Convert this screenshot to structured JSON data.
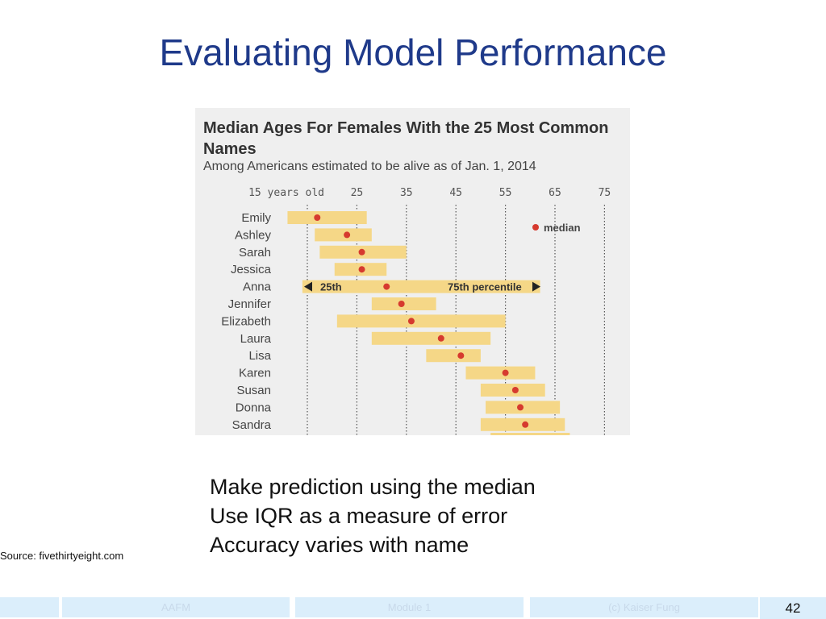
{
  "slide": {
    "title": "Evaluating Model Performance",
    "bullets": [
      "Make prediction using the median",
      "Use IQR as a measure of error",
      "Accuracy varies with name"
    ],
    "source": "Source: fivethirtyeight.com",
    "footer": {
      "left": "AAFM",
      "center": "Module 1",
      "right": "(c) Kaiser Fung",
      "page": "42"
    }
  },
  "colors": {
    "bar": "#f5d787",
    "median_dot": "#d63a2f",
    "background": "#efefef",
    "title_blue": "#1f3a8a"
  },
  "chart_data": {
    "type": "bar",
    "title": "Median Ages For Females With the 25 Most Common Names",
    "subtitle": "Among Americans estimated to be alive as of Jan. 1, 2014",
    "x_tick_labels": [
      "15 years old",
      "25",
      "35",
      "45",
      "55",
      "65",
      "75"
    ],
    "x_ticks": [
      15,
      25,
      35,
      45,
      55,
      65,
      75
    ],
    "xlim": [
      15,
      75
    ],
    "grid": "vertical dotted",
    "legend": {
      "median": "median",
      "q1": "25th",
      "q3": "75th percentile"
    },
    "categories": [
      "Emily",
      "Ashley",
      "Sarah",
      "Jessica",
      "Anna",
      "Jennifer",
      "Elizabeth",
      "Laura",
      "Lisa",
      "Karen",
      "Susan",
      "Donna",
      "Sandra"
    ],
    "q1": [
      11,
      16.5,
      17.5,
      20.5,
      14,
      28,
      21,
      28,
      39,
      47,
      50,
      51,
      50
    ],
    "median": [
      17,
      23,
      26,
      26,
      31,
      34,
      36,
      42,
      46,
      55,
      57,
      58,
      59
    ],
    "q3": [
      27,
      28,
      35,
      31,
      62,
      41,
      55,
      52,
      50,
      61,
      63,
      66,
      67
    ]
  }
}
